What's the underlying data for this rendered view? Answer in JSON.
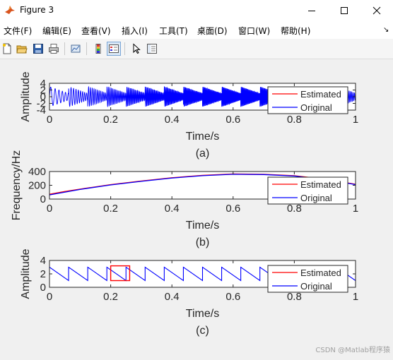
{
  "window": {
    "title": "Figure 3",
    "minimize": "—",
    "maximize": "□",
    "close": "✕"
  },
  "menu": [
    "文件(F)",
    "编辑(E)",
    "查看(V)",
    "插入(I)",
    "工具(T)",
    "桌面(D)",
    "窗口(W)",
    "帮助(H)"
  ],
  "menu_arrow": "↘",
  "toolbar_icons": [
    "new-figure-icon",
    "open-file-icon",
    "save-icon",
    "print-icon",
    "link-plot-icon",
    "insert-colorbar-icon",
    "insert-legend-icon",
    "pointer-icon",
    "property-editor-icon"
  ],
  "colors": {
    "estimated": "#ff0000",
    "original": "#0000ff"
  },
  "watermark": "CSDN @Matlab程序猿",
  "chart_data": [
    {
      "type": "line",
      "ylabel": "Amplitude",
      "xlabel": "Time/s",
      "caption": "(a)",
      "xlim": [
        0,
        1
      ],
      "ylim": [
        -4,
        4
      ],
      "xticks": [
        "0",
        "0.2",
        "0.4",
        "0.6",
        "0.8",
        "1"
      ],
      "yticks": [
        "4",
        "2",
        "0",
        "-2",
        "-4"
      ],
      "legend": [
        "Estimated",
        "Original"
      ],
      "legend_position": "right",
      "series": [
        {
          "name": "Original",
          "signal": "sawtooth frequency-modulated sinusoid",
          "amplitude_max": 3,
          "amplitude_min": 1,
          "frequency_hz_range": [
            60,
            370
          ]
        }
      ]
    },
    {
      "type": "line",
      "ylabel": "Frequency/Hz",
      "xlabel": "Time/s",
      "caption": "(b)",
      "xlim": [
        0,
        1
      ],
      "ylim": [
        0,
        400
      ],
      "xticks": [
        "0",
        "0.2",
        "0.4",
        "0.6",
        "0.8",
        "1"
      ],
      "yticks": [
        "400",
        "200",
        "0"
      ],
      "legend": [
        "Estimated",
        "Original"
      ],
      "legend_position": "right",
      "series": [
        {
          "name": "Estimated",
          "x": [
            0,
            0.05,
            0.1,
            0.2,
            0.3,
            0.4,
            0.5,
            0.6,
            0.7,
            0.8,
            0.9,
            1.0
          ],
          "y": [
            70,
            110,
            145,
            210,
            262,
            310,
            345,
            365,
            360,
            340,
            290,
            215
          ]
        },
        {
          "name": "Original",
          "x": [
            0,
            0.05,
            0.1,
            0.2,
            0.3,
            0.4,
            0.5,
            0.6,
            0.7,
            0.8,
            0.9,
            1.0
          ],
          "y": [
            60,
            100,
            140,
            205,
            258,
            305,
            340,
            360,
            356,
            335,
            285,
            210
          ]
        }
      ]
    },
    {
      "type": "line",
      "ylabel": "Amplitude",
      "xlabel": "Time/s",
      "caption": "(c)",
      "xlim": [
        0,
        1
      ],
      "ylim": [
        0,
        4
      ],
      "xticks": [
        "0",
        "0.2",
        "0.4",
        "0.6",
        "0.8",
        "1"
      ],
      "yticks": [
        "4",
        "2",
        "0"
      ],
      "legend": [
        "Estimated",
        "Original"
      ],
      "legend_position": "right",
      "series": [
        {
          "name": "Original",
          "shape": "sawtooth",
          "period_s": 0.0625,
          "max": 3,
          "min": 1
        }
      ],
      "highlight_box": {
        "x": [
          0.2,
          0.262
        ],
        "y": [
          1,
          3.2
        ]
      }
    }
  ]
}
